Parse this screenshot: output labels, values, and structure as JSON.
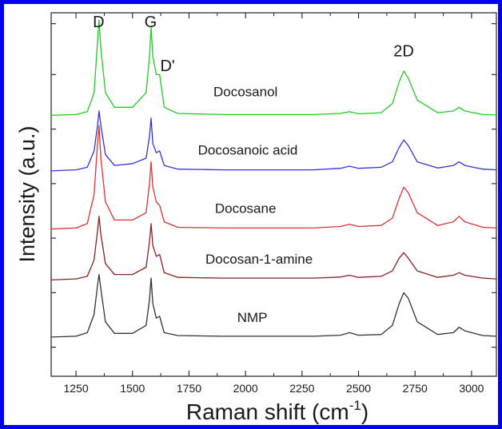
{
  "chart_data": {
    "type": "line",
    "title": "",
    "xlabel": "Raman shift (cm",
    "xlabel_sup": "-1",
    "xlabel_close": ")",
    "ylabel": "Intensity (a.u.)",
    "xlim": [
      1140,
      3110
    ],
    "xticks": [
      1250,
      1500,
      1750,
      2000,
      2250,
      2500,
      2750,
      3000
    ],
    "ylim": [
      0,
      100
    ],
    "grid": false,
    "legend": "none",
    "series": [
      {
        "name": "Docosanol",
        "color": "#22cc22",
        "x": [
          1140,
          1250,
          1300,
          1330,
          1345,
          1352,
          1360,
          1380,
          1420,
          1500,
          1560,
          1575,
          1582,
          1590,
          1605,
          1620,
          1640,
          1700,
          1900,
          2300,
          2420,
          2460,
          2500,
          2600,
          2650,
          2680,
          2700,
          2720,
          2760,
          2850,
          2920,
          2945,
          2970,
          3050,
          3110
        ],
        "y": [
          71.8,
          72,
          72.8,
          78,
          92,
          98,
          90,
          78,
          74,
          74,
          78,
          88,
          96,
          88,
          83,
          83,
          74,
          72.3,
          72,
          72,
          72.3,
          72.8,
          72.2,
          72.5,
          75,
          81,
          84,
          82,
          76,
          72.5,
          73,
          74,
          73,
          72,
          71.9
        ]
      },
      {
        "name": "Docosanoic acid",
        "color": "#3333dd",
        "x": [
          1140,
          1250,
          1300,
          1330,
          1345,
          1352,
          1360,
          1380,
          1420,
          1500,
          1560,
          1575,
          1582,
          1590,
          1605,
          1620,
          1640,
          1700,
          1900,
          2300,
          2420,
          2460,
          2500,
          2600,
          2650,
          2680,
          2700,
          2720,
          2760,
          2850,
          2920,
          2945,
          2970,
          3050,
          3110
        ],
        "y": [
          56.5,
          56.8,
          57.5,
          62,
          69,
          73,
          69,
          61,
          58,
          58.5,
          60,
          66,
          71,
          64,
          61.5,
          62,
          58,
          57,
          56.8,
          56.8,
          57.2,
          57.8,
          57.2,
          57.5,
          59,
          63,
          65,
          63.5,
          59,
          57.3,
          58,
          59,
          58,
          57,
          56.8
        ]
      },
      {
        "name": "Docosane",
        "color": "#dd3333",
        "x": [
          1140,
          1250,
          1300,
          1330,
          1345,
          1352,
          1360,
          1380,
          1420,
          1500,
          1560,
          1575,
          1582,
          1590,
          1605,
          1620,
          1640,
          1700,
          1900,
          2300,
          2420,
          2460,
          2500,
          2600,
          2650,
          2680,
          2700,
          2720,
          2760,
          2850,
          2920,
          2945,
          2970,
          3050,
          3110
        ],
        "y": [
          40.5,
          40.8,
          42,
          50,
          64,
          69,
          60,
          48,
          43,
          43,
          45,
          53,
          59,
          52,
          48,
          47,
          42.5,
          41,
          40.8,
          40.8,
          41.2,
          41.8,
          41.2,
          41.5,
          43.5,
          49,
          52,
          50.5,
          45,
          41.5,
          42.5,
          44,
          42.5,
          41,
          40.8
        ]
      },
      {
        "name": "Docosan-1-amine",
        "color": "#882222",
        "x": [
          1140,
          1250,
          1300,
          1330,
          1345,
          1352,
          1360,
          1380,
          1420,
          1500,
          1560,
          1575,
          1582,
          1590,
          1605,
          1620,
          1640,
          1700,
          1900,
          2300,
          2420,
          2460,
          2500,
          2600,
          2650,
          2680,
          2700,
          2720,
          2760,
          2850,
          2920,
          2945,
          2970,
          3050,
          3110
        ],
        "y": [
          26.5,
          26.8,
          27.5,
          32,
          40,
          44,
          39,
          31,
          28,
          28,
          30,
          37,
          42,
          36,
          33,
          33.5,
          28.5,
          27.2,
          27,
          27,
          27.3,
          27.8,
          27.2,
          27.5,
          29,
          32.5,
          34,
          32.5,
          29,
          27.2,
          27.8,
          28.5,
          27.8,
          27,
          26.8
        ]
      },
      {
        "name": "NMP",
        "color": "#333333",
        "x": [
          1140,
          1250,
          1300,
          1330,
          1345,
          1352,
          1360,
          1380,
          1420,
          1500,
          1560,
          1575,
          1582,
          1590,
          1605,
          1620,
          1640,
          1700,
          1900,
          2300,
          2420,
          2460,
          2500,
          2600,
          2650,
          2680,
          2700,
          2720,
          2760,
          2850,
          2920,
          2945,
          2970,
          3050,
          3110
        ],
        "y": [
          10.8,
          11,
          12,
          17,
          25,
          28,
          24,
          15,
          11.8,
          11.8,
          14,
          21,
          27,
          20,
          16,
          16.5,
          12,
          11.2,
          11,
          11,
          11.3,
          12,
          11.3,
          11.5,
          14,
          20,
          23,
          21.5,
          15,
          11.5,
          12,
          13.5,
          12.5,
          11.2,
          11
        ]
      }
    ],
    "annotations": [
      {
        "text": "D",
        "x": 1350,
        "y": 96
      },
      {
        "text": "G",
        "x": 1580,
        "y": 96
      },
      {
        "text": "D'",
        "x": 1655,
        "y": 84
      },
      {
        "text": "2D",
        "x": 2700,
        "y": 88
      }
    ],
    "curve_labels": [
      {
        "text": "Docosanol",
        "x": 2000,
        "y": 77
      },
      {
        "text": "Docosanoic acid",
        "x": 2010,
        "y": 61
      },
      {
        "text": "Docosane",
        "x": 2000,
        "y": 45
      },
      {
        "text": "Docosan-1-amine",
        "x": 2060,
        "y": 31
      },
      {
        "text": "NMP",
        "x": 2030,
        "y": 15
      }
    ]
  }
}
